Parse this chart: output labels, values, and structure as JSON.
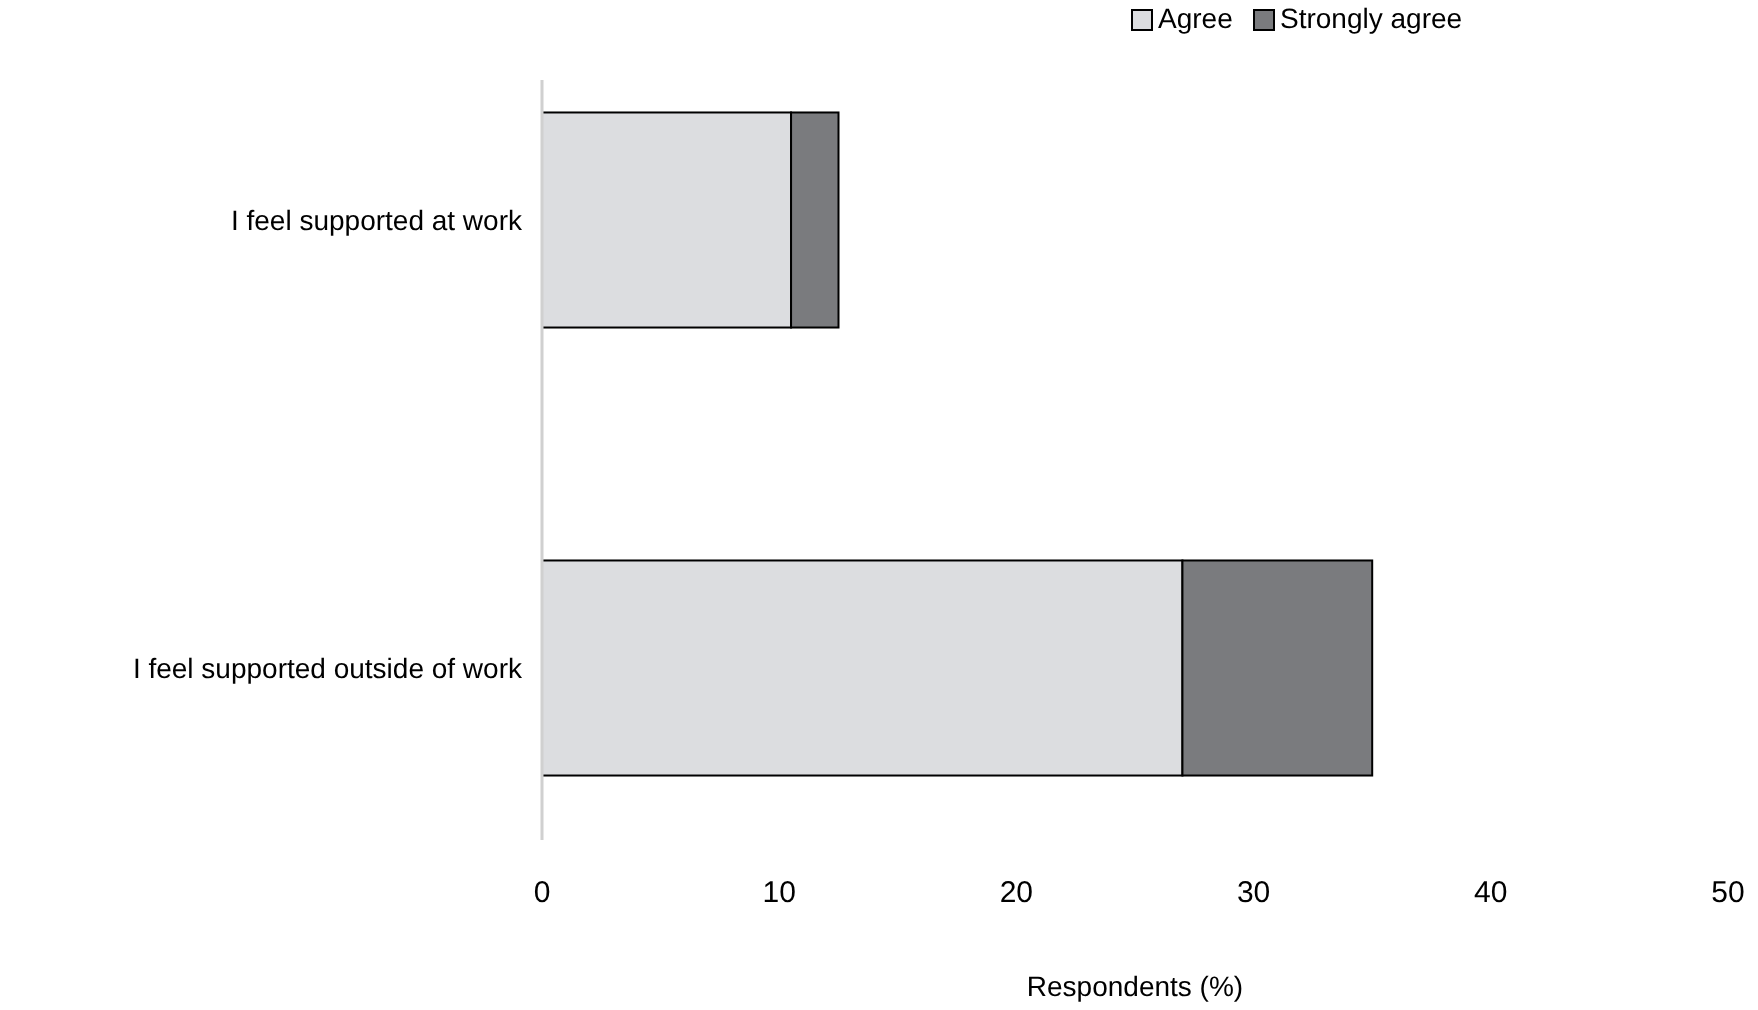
{
  "chart_data": {
    "type": "bar",
    "orientation": "horizontal",
    "stacked": true,
    "xlabel": "Respondents (%)",
    "categories": [
      "I feel supported at work",
      "I feel supported outside of work"
    ],
    "series": [
      {
        "name": "Agree",
        "color": "#dcdde0",
        "values": [
          10.5,
          27
        ]
      },
      {
        "name": "Strongly agree",
        "color": "#7a7b7e",
        "values": [
          2,
          8
        ]
      }
    ],
    "xlim": [
      0,
      50
    ],
    "xticks": [
      0,
      10,
      20,
      30,
      40,
      50
    ],
    "grid": false,
    "legend": "top right"
  }
}
